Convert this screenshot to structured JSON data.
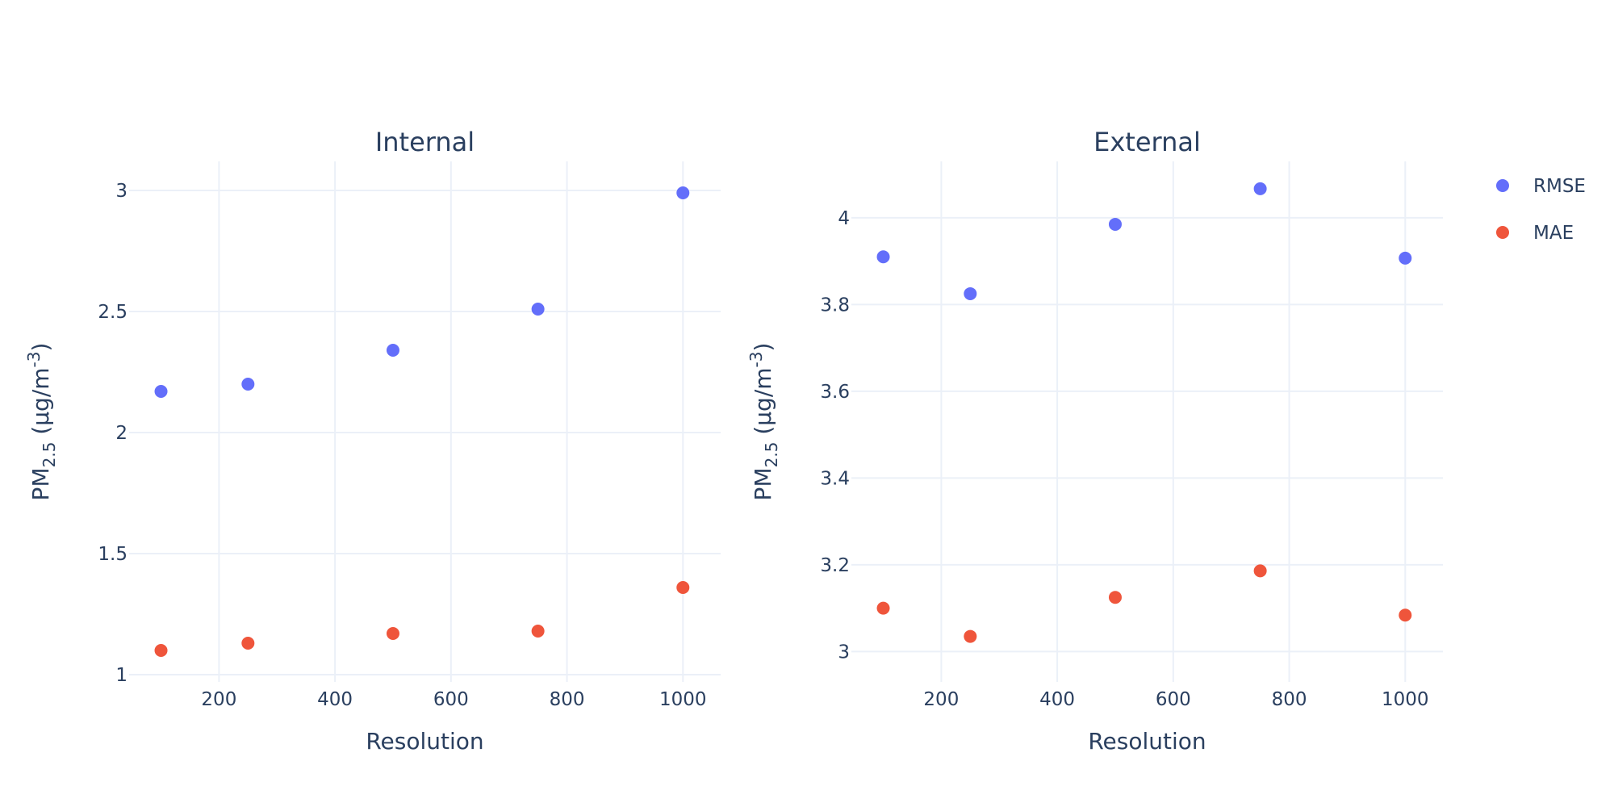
{
  "colors": {
    "RMSE": "#636efa",
    "MAE": "#ef553b"
  },
  "legend": {
    "placement": "top-right",
    "items": [
      "RMSE",
      "MAE"
    ]
  },
  "chart_data": [
    {
      "type": "scatter",
      "title": "Internal",
      "xlabel": "Resolution",
      "ylabel_parts": {
        "base": "PM",
        "sub": "2.5",
        "mid": " (μg/m",
        "sup": "-3",
        "end": ")"
      },
      "xlim": [
        45,
        1065
      ],
      "ylim": [
        0.97,
        3.12
      ],
      "xticks": [
        200,
        400,
        600,
        800,
        1000
      ],
      "yticks": [
        1,
        1.5,
        2,
        2.5,
        3
      ],
      "ytick_labels": [
        "1",
        "1.5",
        "2",
        "2.5",
        "3"
      ],
      "grid": true,
      "x": [
        100,
        250,
        500,
        750,
        1000
      ],
      "series": [
        {
          "name": "RMSE",
          "values": [
            2.17,
            2.2,
            2.34,
            2.51,
            2.99
          ]
        },
        {
          "name": "MAE",
          "values": [
            1.1,
            1.13,
            1.17,
            1.18,
            1.36
          ]
        }
      ]
    },
    {
      "type": "scatter",
      "title": "External",
      "xlabel": "Resolution",
      "ylabel_parts": {
        "base": "PM",
        "sub": "2.5",
        "mid": " (μg/m",
        "sup": "-3",
        "end": ")"
      },
      "xlim": [
        45,
        1065
      ],
      "ylim": [
        2.93,
        4.13
      ],
      "xticks": [
        200,
        400,
        600,
        800,
        1000
      ],
      "yticks": [
        3,
        3.2,
        3.4,
        3.6,
        3.8,
        4
      ],
      "ytick_labels": [
        "3",
        "3.2",
        "3.4",
        "3.6",
        "3.8",
        "4"
      ],
      "grid": true,
      "x": [
        100,
        250,
        500,
        750,
        1000
      ],
      "series": [
        {
          "name": "RMSE",
          "values": [
            3.91,
            3.825,
            3.985,
            4.067,
            3.907
          ]
        },
        {
          "name": "MAE",
          "values": [
            3.1,
            3.035,
            3.125,
            3.186,
            3.084
          ]
        }
      ]
    }
  ]
}
